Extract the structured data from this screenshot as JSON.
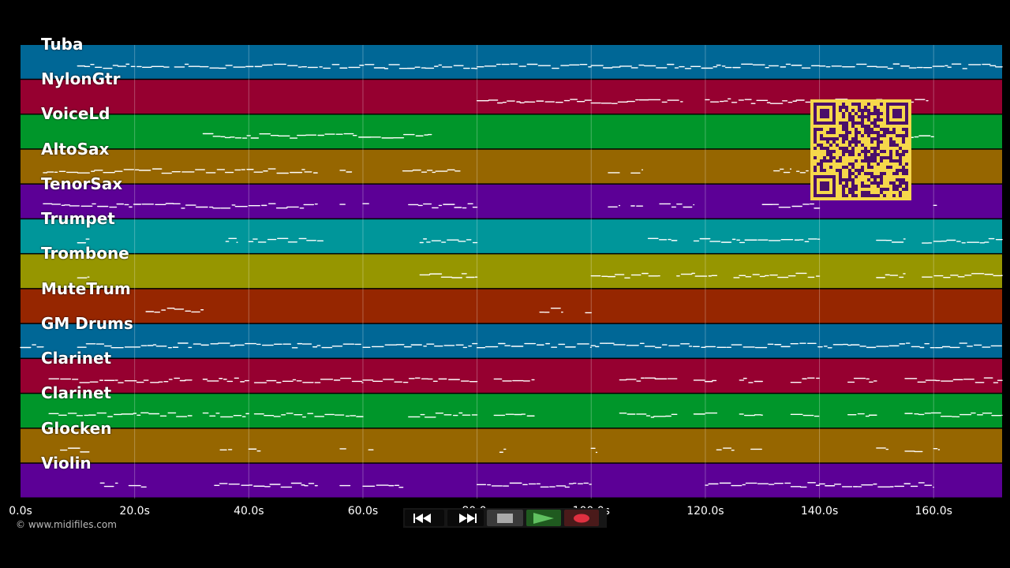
{
  "app": {
    "copyright": "© www.midifiles.com",
    "duration_s": 172,
    "background": "#000000"
  },
  "tracks": [
    {
      "name": "Tuba",
      "color": "#006796"
    },
    {
      "name": "NylonGtr",
      "color": "#960030"
    },
    {
      "name": "VoiceLd",
      "color": "#00962a"
    },
    {
      "name": "AltoSax",
      "color": "#966600"
    },
    {
      "name": "TenorSax",
      "color": "#5c0096"
    },
    {
      "name": "Trumpet",
      "color": "#00969a"
    },
    {
      "name": "Trombone",
      "color": "#969600"
    },
    {
      "name": "MuteTrum",
      "color": "#962600"
    },
    {
      "name": "GM Drums",
      "color": "#006796"
    },
    {
      "name": "Clarinet",
      "color": "#960030"
    },
    {
      "name": "Clarinet",
      "color": "#00962a"
    },
    {
      "name": "Glocken",
      "color": "#966600"
    },
    {
      "name": "Violin",
      "color": "#5c0096"
    }
  ],
  "time_axis": {
    "ticks": [
      {
        "t": 0,
        "label": "0.0s"
      },
      {
        "t": 20,
        "label": "20.0s"
      },
      {
        "t": 40,
        "label": "40.0s"
      },
      {
        "t": 60,
        "label": "60.0s"
      },
      {
        "t": 80,
        "label": "80.0s"
      },
      {
        "t": 100,
        "label": "100.0s"
      },
      {
        "t": 120,
        "label": "120.0s"
      },
      {
        "t": 140,
        "label": "140.0s"
      },
      {
        "t": 160,
        "label": "160.0s"
      }
    ]
  },
  "controls": {
    "rewind_icon": "rewind-icon",
    "fast_forward_icon": "fast-forward-icon",
    "stop_icon": "stop-icon",
    "play_icon": "play-icon",
    "record_icon": "record-icon",
    "play_color": "#60c060",
    "record_color": "#e03040"
  },
  "qr_code": {
    "color_fg": "#4a0f6a",
    "color_bg": "#f6d84b"
  },
  "note_segments": [
    [
      [
        10,
        26
      ],
      [
        27,
        56
      ],
      [
        56,
        80
      ],
      [
        80,
        100
      ],
      [
        100,
        122
      ],
      [
        122,
        140
      ],
      [
        140,
        150
      ],
      [
        150,
        172
      ]
    ],
    [
      [
        80,
        100
      ],
      [
        100,
        116
      ],
      [
        120,
        140
      ],
      [
        140,
        150
      ],
      [
        150,
        159
      ]
    ],
    [
      [
        32,
        72
      ],
      [
        156,
        160
      ]
    ],
    [
      [
        4,
        52
      ],
      [
        56,
        58
      ],
      [
        67,
        77
      ],
      [
        103,
        105
      ],
      [
        107,
        109
      ],
      [
        132,
        135
      ],
      [
        136,
        138
      ]
    ],
    [
      [
        4,
        52
      ],
      [
        56,
        57
      ],
      [
        60,
        61
      ],
      [
        68,
        80
      ],
      [
        103,
        105
      ],
      [
        107,
        109
      ],
      [
        112,
        118
      ],
      [
        130,
        140
      ],
      [
        160,
        160.5
      ]
    ],
    [
      [
        10,
        12
      ],
      [
        36,
        38
      ],
      [
        40,
        53
      ],
      [
        70,
        80
      ],
      [
        110,
        115
      ],
      [
        118,
        140
      ],
      [
        150,
        155
      ],
      [
        158,
        172
      ]
    ],
    [
      [
        10,
        12
      ],
      [
        70,
        80
      ],
      [
        100,
        112
      ],
      [
        115,
        122
      ],
      [
        125,
        140
      ],
      [
        150,
        155
      ],
      [
        158,
        172
      ]
    ],
    [
      [
        22,
        32
      ],
      [
        91,
        95
      ],
      [
        99,
        100
      ]
    ],
    [
      [
        0,
        4
      ],
      [
        10,
        52
      ],
      [
        52,
        80
      ],
      [
        80,
        100
      ],
      [
        100,
        120
      ],
      [
        120,
        140
      ],
      [
        140,
        150
      ],
      [
        150,
        172
      ]
    ],
    [
      [
        5,
        30
      ],
      [
        32,
        40
      ],
      [
        41,
        60
      ],
      [
        60,
        80
      ],
      [
        83,
        90
      ],
      [
        105,
        115
      ],
      [
        118,
        122
      ],
      [
        126,
        130
      ],
      [
        135,
        140
      ],
      [
        145,
        150
      ],
      [
        155,
        172
      ]
    ],
    [
      [
        5,
        30
      ],
      [
        32,
        40
      ],
      [
        41,
        60
      ],
      [
        68,
        80
      ],
      [
        83,
        90
      ],
      [
        105,
        115
      ],
      [
        118,
        122
      ],
      [
        126,
        130
      ],
      [
        135,
        140
      ],
      [
        145,
        150
      ],
      [
        155,
        172
      ]
    ],
    [
      [
        7,
        12
      ],
      [
        35,
        37
      ],
      [
        40,
        42
      ],
      [
        56,
        57
      ],
      [
        61,
        62
      ],
      [
        84,
        85
      ],
      [
        100,
        101
      ],
      [
        122,
        125
      ],
      [
        128,
        130
      ],
      [
        150,
        152
      ],
      [
        155,
        158
      ],
      [
        160,
        161
      ]
    ],
    [
      [
        14,
        17
      ],
      [
        19,
        22
      ],
      [
        34,
        52
      ],
      [
        56,
        58
      ],
      [
        60,
        67
      ],
      [
        80,
        100
      ],
      [
        120,
        140
      ],
      [
        140,
        160
      ]
    ]
  ]
}
